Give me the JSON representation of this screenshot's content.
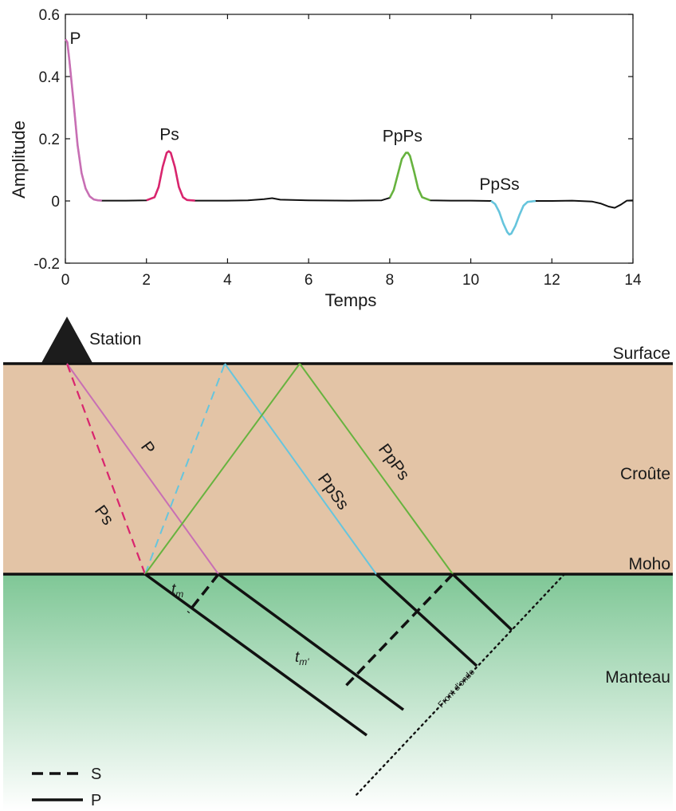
{
  "chart_data": {
    "type": "line",
    "title": "",
    "xlabel": "Temps",
    "ylabel": "Amplitude",
    "xlim": [
      0,
      14
    ],
    "ylim": [
      -0.2,
      0.6
    ],
    "x_ticks": [
      "0",
      "2",
      "4",
      "6",
      "8",
      "10",
      "12",
      "14"
    ],
    "y_ticks": [
      "-0.2",
      "0",
      "0.2",
      "0.4",
      "0.6"
    ],
    "grid": false,
    "line_color": "#111111",
    "series": [
      {
        "x": [
          0,
          0.05,
          0.1,
          0.2,
          0.3,
          0.4,
          0.5,
          0.6,
          0.7,
          0.8,
          0.9,
          1.0,
          1.5,
          2.0,
          2.2,
          2.3,
          2.4,
          2.5,
          2.55,
          2.6,
          2.7,
          2.8,
          2.9,
          3.0,
          3.2,
          3.5,
          4.0,
          4.5,
          4.9,
          5.1,
          5.3,
          6.0,
          7.0,
          7.8,
          8.0,
          8.1,
          8.2,
          8.3,
          8.4,
          8.45,
          8.5,
          8.6,
          8.7,
          8.8,
          9.0,
          9.5,
          10.0,
          10.5,
          10.6,
          10.7,
          10.8,
          10.9,
          10.95,
          11.0,
          11.1,
          11.2,
          11.3,
          11.4,
          11.6,
          12.0,
          12.5,
          13.0,
          13.2,
          13.4,
          13.55,
          13.7,
          13.85,
          14.0
        ],
        "y": [
          0.52,
          0.51,
          0.45,
          0.32,
          0.18,
          0.09,
          0.04,
          0.015,
          0.005,
          0.002,
          0.001,
          0.001,
          0.001,
          0.002,
          0.012,
          0.045,
          0.11,
          0.155,
          0.16,
          0.155,
          0.11,
          0.045,
          0.012,
          0.003,
          0.001,
          0.001,
          0.001,
          0.002,
          0.006,
          0.009,
          0.004,
          0.002,
          0.001,
          0.002,
          0.01,
          0.035,
          0.085,
          0.135,
          0.155,
          0.155,
          0.145,
          0.095,
          0.04,
          0.012,
          0.002,
          0.001,
          0.001,
          0.0,
          -0.01,
          -0.035,
          -0.072,
          -0.1,
          -0.108,
          -0.105,
          -0.08,
          -0.045,
          -0.015,
          -0.003,
          0.0,
          0.0,
          0.001,
          -0.002,
          -0.008,
          -0.018,
          -0.022,
          -0.012,
          0.001,
          0.002
        ]
      }
    ],
    "segments": [
      {
        "name": "P",
        "x0": 0,
        "x1": 0.9,
        "color": "#c86fb4"
      },
      {
        "name": "Ps",
        "x0": 1.95,
        "x1": 3.3,
        "color": "#d9256e"
      },
      {
        "name": "PpPs",
        "x0": 7.85,
        "x1": 9.05,
        "color": "#67b33f"
      },
      {
        "name": "PpSs",
        "x0": 10.4,
        "x1": 11.65,
        "color": "#66c5dd"
      }
    ],
    "annotations": [
      {
        "text": "P",
        "x": 0.03,
        "y": 0.52,
        "color": "#c86fb4"
      },
      {
        "text": "Ps",
        "x": 2.6,
        "y": 0.16,
        "color": "#d9256e"
      },
      {
        "text": "PpPs",
        "x": 8.45,
        "y": 0.155,
        "color": "#67b33f"
      },
      {
        "text": "PpSs",
        "x": 11.0,
        "y": 0.0,
        "color": "#66c5dd"
      }
    ]
  },
  "diagram": {
    "station_label": "Station",
    "layers": [
      {
        "label": "Surface"
      },
      {
        "label": "Croûte",
        "color": "#e3c4a6"
      },
      {
        "label": "Moho"
      },
      {
        "label": "Manteau",
        "color_top": "#7fc796",
        "color_bottom": "#ffffff"
      }
    ],
    "rays": [
      {
        "label": "P",
        "color": "#c86fb4"
      },
      {
        "label": "Ps",
        "color": "#d9256e"
      },
      {
        "label": "PpSs",
        "color": "#66c5dd"
      },
      {
        "label": "PpPs",
        "color": "#67b33f"
      }
    ],
    "wavefront_label": "Front d'onde",
    "time_labels": {
      "tm": "t",
      "tm_sub": "m",
      "tm2_sub": "m'"
    },
    "legend": [
      {
        "label": "S",
        "style": "dashed"
      },
      {
        "label": "P",
        "style": "solid"
      }
    ]
  }
}
